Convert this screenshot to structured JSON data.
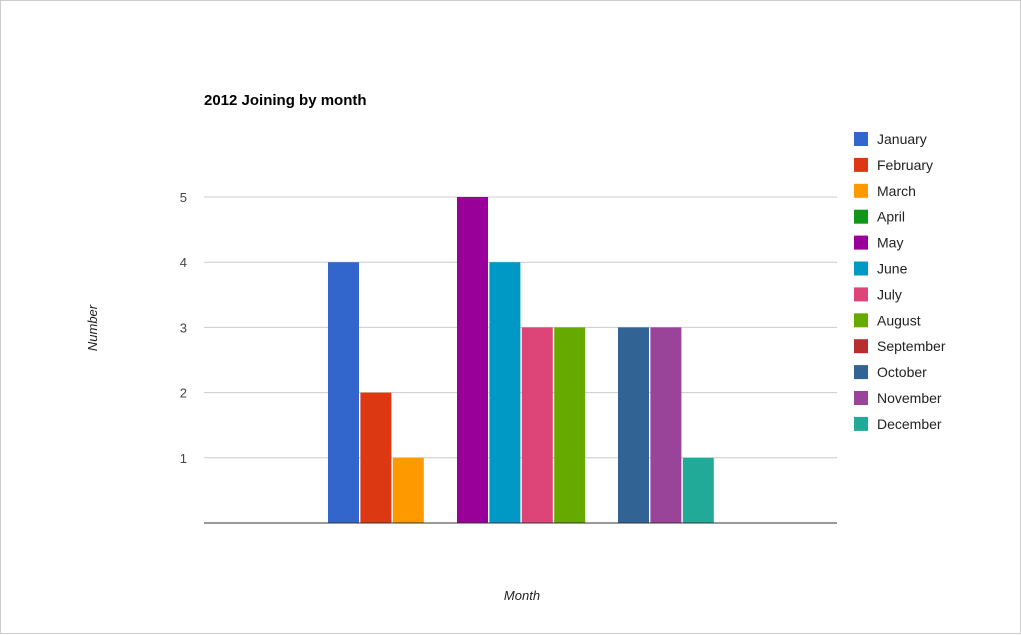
{
  "chart_data": {
    "type": "bar",
    "title": "2012 Joining by month",
    "xlabel": "Month",
    "ylabel": "Number",
    "ylim": [
      0,
      6
    ],
    "yticks": [
      1,
      2,
      3,
      4,
      5
    ],
    "grid": true,
    "legend": "right",
    "groups": 3,
    "series": [
      {
        "name": "January",
        "color": "#3366cc",
        "values": [
          4,
          0,
          0
        ]
      },
      {
        "name": "February",
        "color": "#dc3912",
        "values": [
          2,
          0,
          0
        ]
      },
      {
        "name": "March",
        "color": "#ff9900",
        "values": [
          1,
          0,
          0
        ]
      },
      {
        "name": "April",
        "color": "#109618",
        "values": [
          0,
          0,
          0
        ]
      },
      {
        "name": "May",
        "color": "#990099",
        "values": [
          0,
          5,
          0
        ]
      },
      {
        "name": "June",
        "color": "#0099c6",
        "values": [
          0,
          4,
          0
        ]
      },
      {
        "name": "July",
        "color": "#dd4477",
        "values": [
          0,
          3,
          0
        ]
      },
      {
        "name": "August",
        "color": "#66aa00",
        "values": [
          0,
          3,
          0
        ]
      },
      {
        "name": "September",
        "color": "#b82e2e",
        "values": [
          0,
          0,
          0
        ]
      },
      {
        "name": "October",
        "color": "#316395",
        "values": [
          0,
          0,
          3
        ]
      },
      {
        "name": "November",
        "color": "#994499",
        "values": [
          0,
          0,
          3
        ]
      },
      {
        "name": "December",
        "color": "#22aa99",
        "values": [
          0,
          0,
          1
        ]
      }
    ]
  }
}
